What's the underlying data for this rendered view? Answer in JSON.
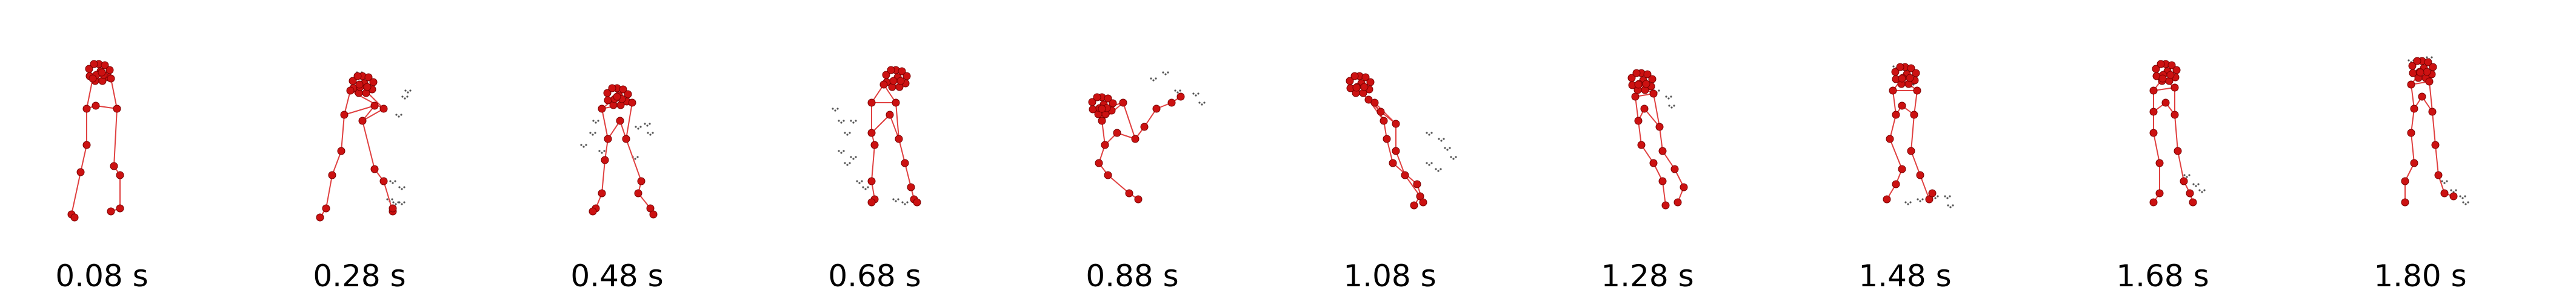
{
  "figure": {
    "colors": {
      "joint_fill": "#cc1111",
      "joint_stroke": "#7a0000",
      "bone": "#e04040",
      "point_cloud": "#555555"
    },
    "frames": [
      {
        "time_label": "0.08 s"
      },
      {
        "time_label": "0.28 s"
      },
      {
        "time_label": "0.48 s"
      },
      {
        "time_label": "0.68 s"
      },
      {
        "time_label": "0.88 s"
      },
      {
        "time_label": "1.08 s"
      },
      {
        "time_label": "1.28 s"
      },
      {
        "time_label": "1.48 s"
      },
      {
        "time_label": "1.68 s"
      },
      {
        "time_label": "1.80 s"
      }
    ]
  }
}
